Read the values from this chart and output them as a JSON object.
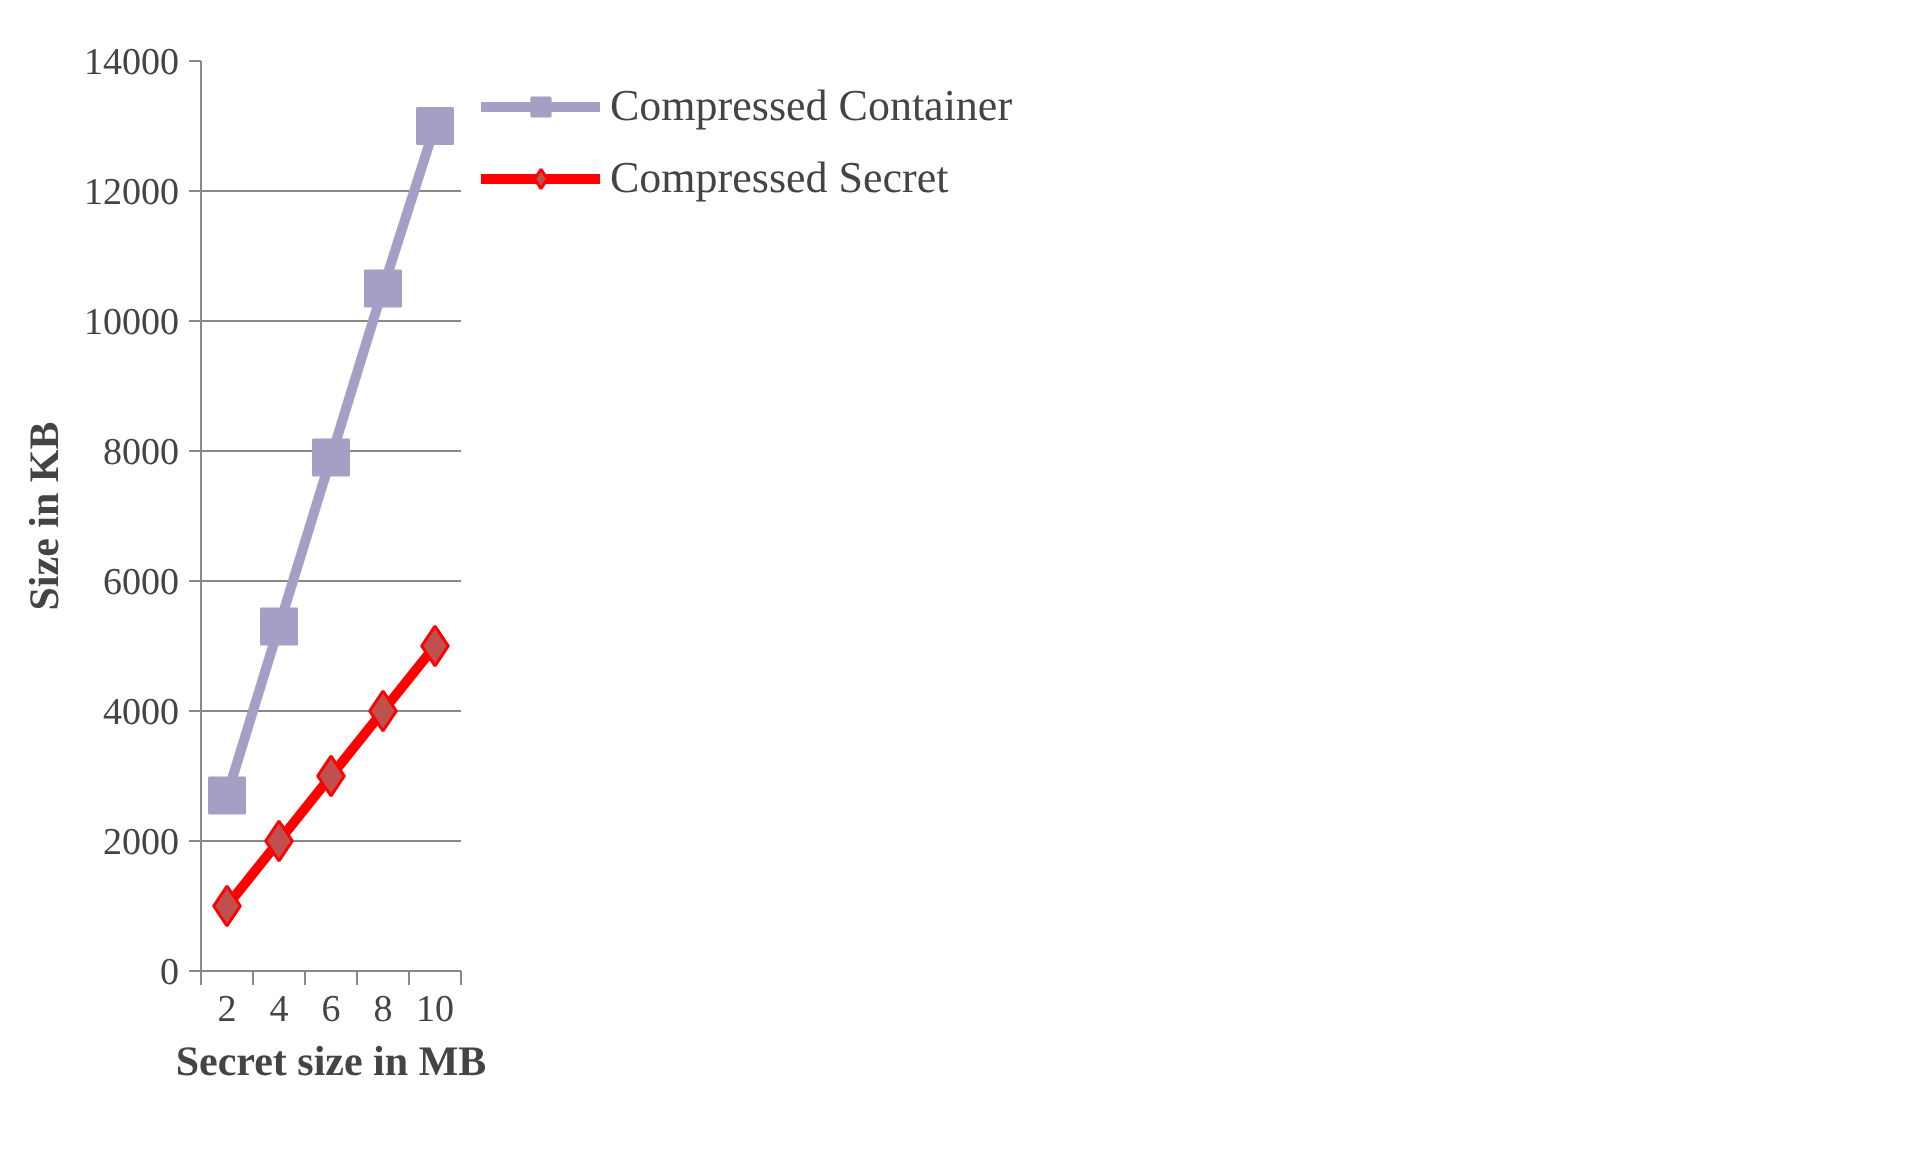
{
  "chart_data": {
    "type": "line",
    "xlabel": "Secret size in MB",
    "ylabel": "Size in KB",
    "categories": [
      "2",
      "4",
      "6",
      "8",
      "10"
    ],
    "series": [
      {
        "name": "Compressed Container",
        "color": "#a59fc6",
        "marker": "square",
        "values": [
          2700,
          5300,
          7900,
          10500,
          13000
        ]
      },
      {
        "name": "Compressed Secret",
        "color": "#ff0000",
        "marker": "diamond",
        "values": [
          1000,
          2000,
          3000,
          4000,
          5000
        ]
      }
    ],
    "ylim": [
      0,
      14000
    ],
    "yticks": [
      0,
      2000,
      4000,
      6000,
      8000,
      10000,
      12000,
      14000
    ],
    "grid": "y",
    "legend": "top right",
    "line_style": "solid"
  }
}
